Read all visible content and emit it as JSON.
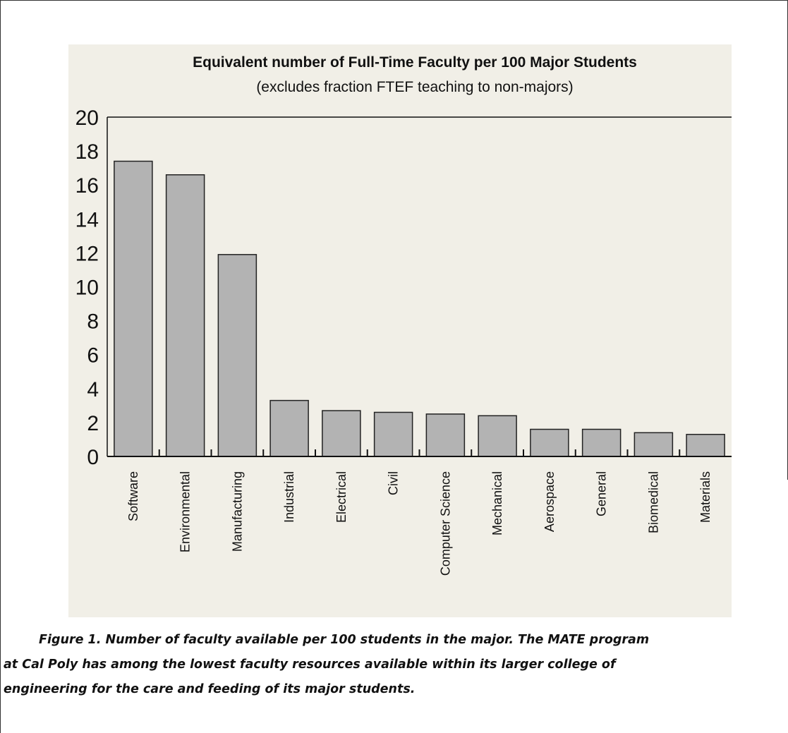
{
  "figure": {
    "caption_line1": "Figure 1. Number of faculty available per 100 students in the major. The MATE program",
    "caption_line2": "at Cal Poly has among the lowest faculty resources available within its larger college of",
    "caption_line3": "engineering for the care and feeding of its major students."
  },
  "colors": {
    "panel": "#f1efe7",
    "bar_fill": "#b3b3b3",
    "bar_stroke": "#222222",
    "axis": "#111111"
  },
  "chart_data": {
    "type": "bar",
    "title": "Equivalent number of Full-Time Faculty per 100 Major Students",
    "subtitle": "(excludes fraction FTEF teaching to non-majors)",
    "xlabel": "",
    "ylabel": "",
    "ylim": [
      0,
      20
    ],
    "yticks": [
      "0",
      "2",
      "4",
      "6",
      "8",
      "10",
      "12",
      "14",
      "16",
      "18",
      "20"
    ],
    "grid": false,
    "categories": [
      "Software",
      "Environmental",
      "Manufacturing",
      "Industrial",
      "Electrical",
      "Civil",
      "Computer Science",
      "Mechanical",
      "Aerospace",
      "General",
      "Biomedical",
      "Materials"
    ],
    "values": [
      17.4,
      16.6,
      11.9,
      3.3,
      2.7,
      2.6,
      2.5,
      2.4,
      1.6,
      1.6,
      1.4,
      1.3
    ]
  }
}
